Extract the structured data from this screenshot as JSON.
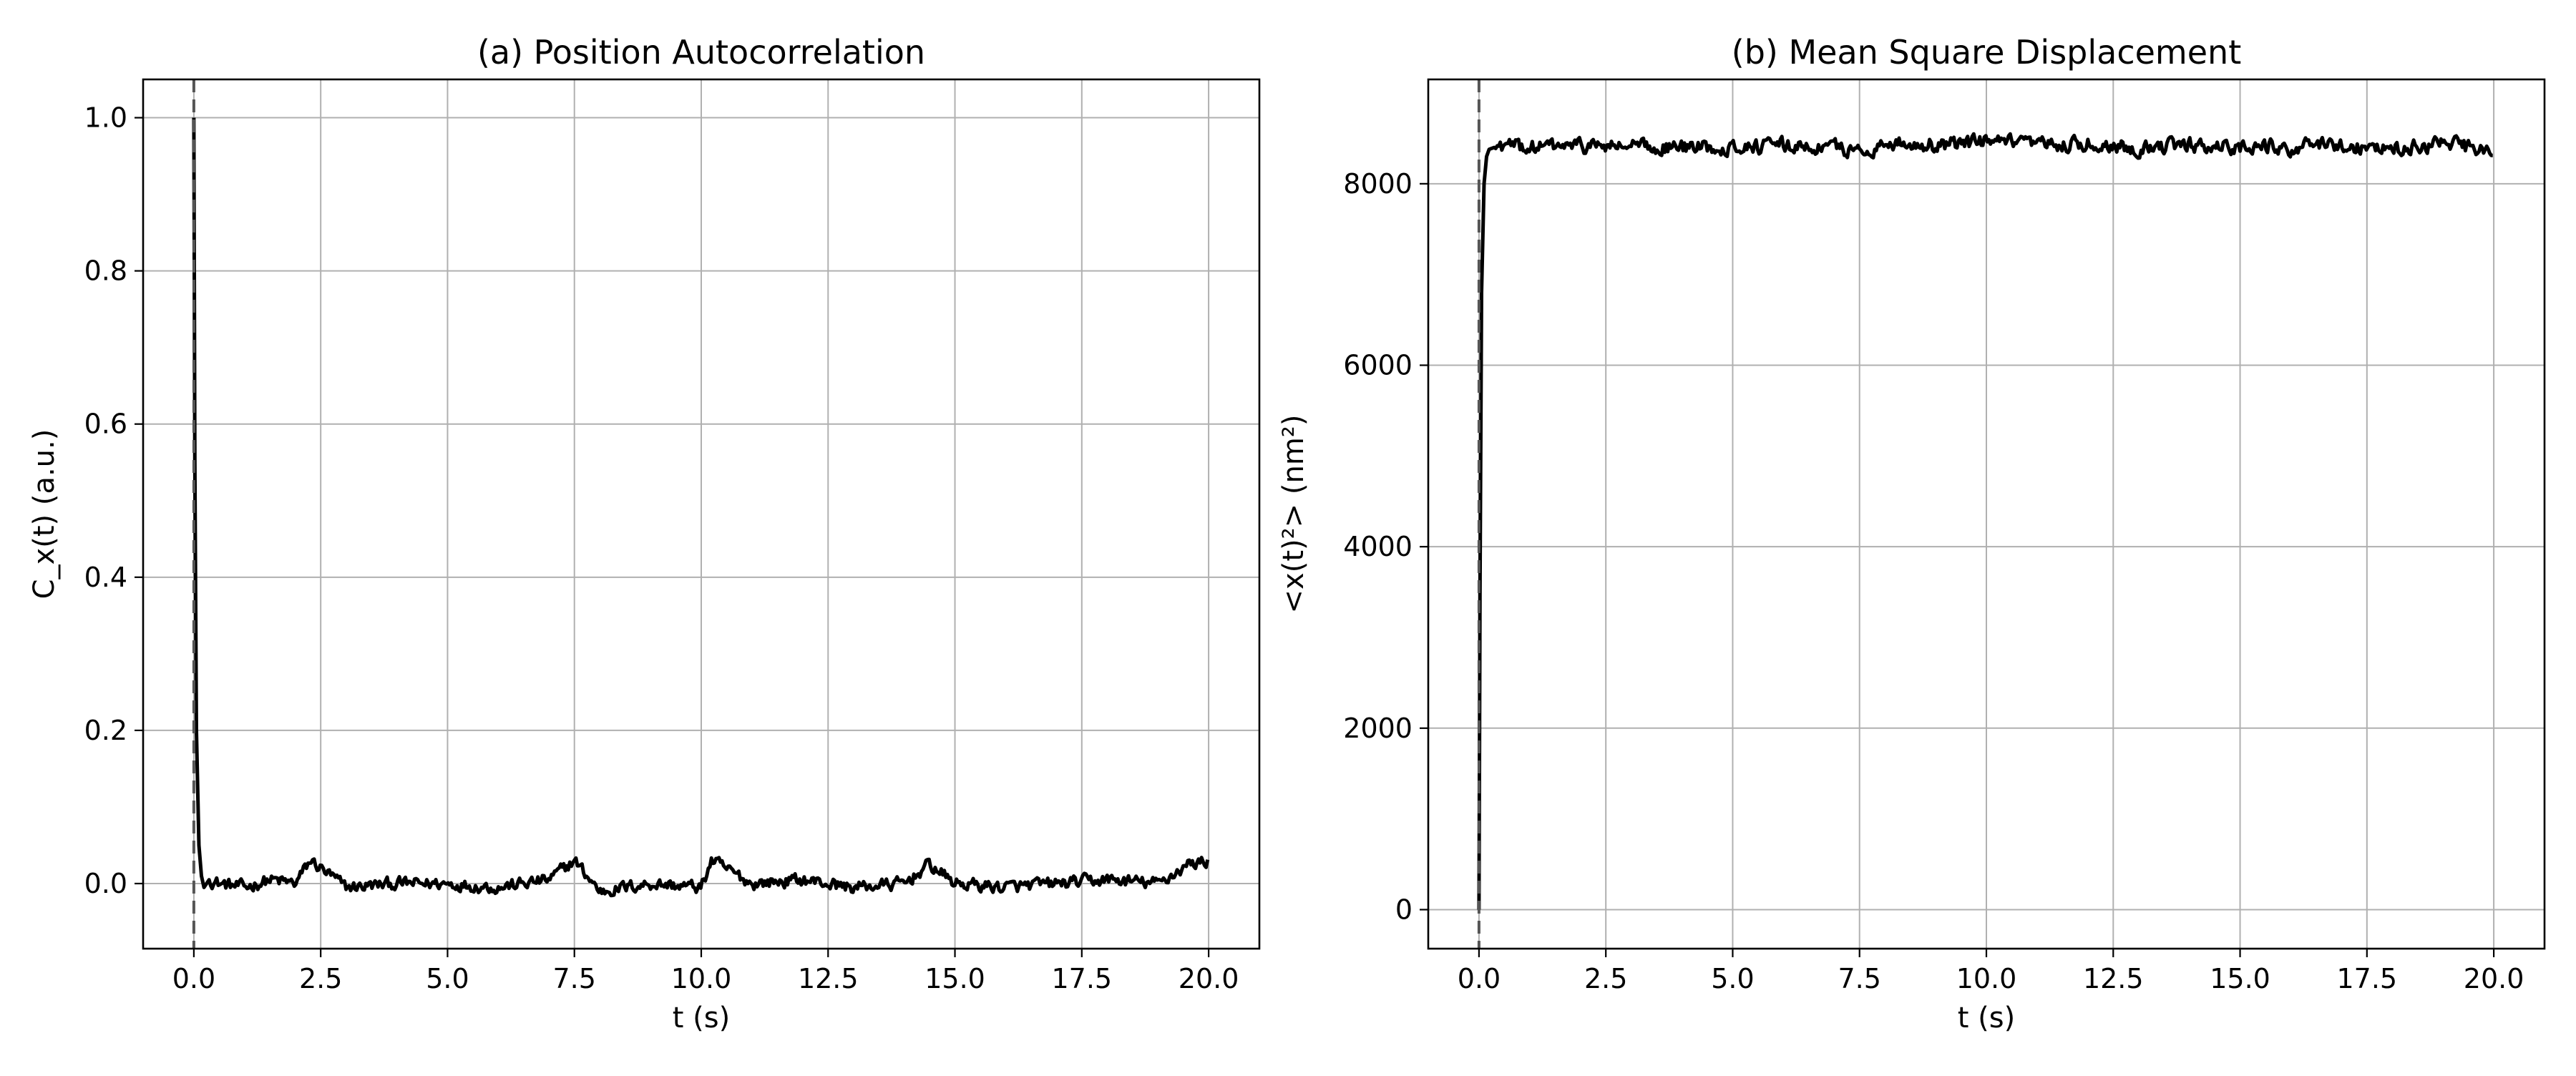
{
  "chart_data": [
    {
      "type": "line",
      "title": "(a) Position Autocorrelation",
      "xlabel": "t (s)",
      "ylabel": "C_x(t) (a.u.)",
      "xlim": [
        -1.0,
        21.0
      ],
      "ylim": [
        -0.085,
        1.05
      ],
      "xticks": [
        0.0,
        2.5,
        5.0,
        7.5,
        10.0,
        12.5,
        15.0,
        17.5,
        20.0
      ],
      "xtick_labels": [
        "0.0",
        "2.5",
        "5.0",
        "7.5",
        "10.0",
        "12.5",
        "15.0",
        "17.5",
        "20.0"
      ],
      "yticks": [
        0.0,
        0.2,
        0.4,
        0.6,
        0.8,
        1.0
      ],
      "ytick_labels": [
        "0.0",
        "0.2",
        "0.4",
        "0.6",
        "0.8",
        "1.0"
      ],
      "grid": true,
      "vline": {
        "x": 0.0,
        "style": "dashed",
        "color": "#555555"
      },
      "line_color": "#000000",
      "series": [
        {
          "x": [
            0.0,
            0.02,
            0.05,
            0.1,
            0.15,
            0.2,
            0.3,
            0.5,
            1.0,
            1.5,
            2.0,
            2.3,
            3.0,
            4.0,
            5.0,
            6.0,
            7.0,
            7.5,
            8.0,
            9.0,
            10.0,
            10.2,
            11.0,
            12.0,
            13.0,
            14.0,
            14.5,
            15.0,
            16.0,
            17.0,
            18.0,
            19.0,
            19.6,
            20.0
          ],
          "y": [
            1.0,
            0.55,
            0.2,
            0.05,
            0.01,
            -0.005,
            0.005,
            0.0,
            -0.005,
            0.005,
            0.0,
            0.03,
            -0.005,
            0.0,
            0.0,
            -0.005,
            0.005,
            0.03,
            -0.01,
            0.0,
            -0.005,
            0.03,
            0.0,
            0.005,
            -0.005,
            0.0,
            0.025,
            0.0,
            -0.005,
            0.0,
            0.005,
            0.0,
            0.025,
            0.03
          ]
        }
      ],
      "noise_amplitude": 0.013
    },
    {
      "type": "line",
      "title": "(b) Mean Square Displacement",
      "xlabel": "t (s)",
      "ylabel": "<x(t)²> (nm²)",
      "xlim": [
        -1.0,
        21.0
      ],
      "ylim": [
        -430,
        9150
      ],
      "xticks": [
        0.0,
        2.5,
        5.0,
        7.5,
        10.0,
        12.5,
        15.0,
        17.5,
        20.0
      ],
      "xtick_labels": [
        "0.0",
        "2.5",
        "5.0",
        "7.5",
        "10.0",
        "12.5",
        "15.0",
        "17.5",
        "20.0"
      ],
      "yticks": [
        0,
        2000,
        4000,
        6000,
        8000
      ],
      "ytick_labels": [
        "0",
        "2000",
        "4000",
        "6000",
        "8000"
      ],
      "grid": true,
      "vline": {
        "x": 0.0,
        "style": "dashed",
        "color": "#555555"
      },
      "line_color": "#000000",
      "series": [
        {
          "x": [
            0.0,
            0.02,
            0.05,
            0.1,
            0.15,
            0.2,
            0.3,
            0.5,
            1.0,
            2.0,
            3.0,
            4.0,
            5.0,
            6.0,
            7.0,
            7.6,
            8.0,
            9.0,
            10.0,
            11.0,
            12.0,
            13.0,
            14.0,
            15.0,
            16.0,
            17.0,
            18.0,
            19.0,
            20.0
          ],
          "y": [
            0,
            3500,
            6800,
            8000,
            8300,
            8380,
            8400,
            8420,
            8400,
            8420,
            8410,
            8400,
            8410,
            8420,
            8400,
            8350,
            8450,
            8430,
            8460,
            8420,
            8440,
            8400,
            8420,
            8410,
            8400,
            8430,
            8380,
            8450,
            8350
          ]
        }
      ],
      "noise_amplitude": 130
    }
  ]
}
